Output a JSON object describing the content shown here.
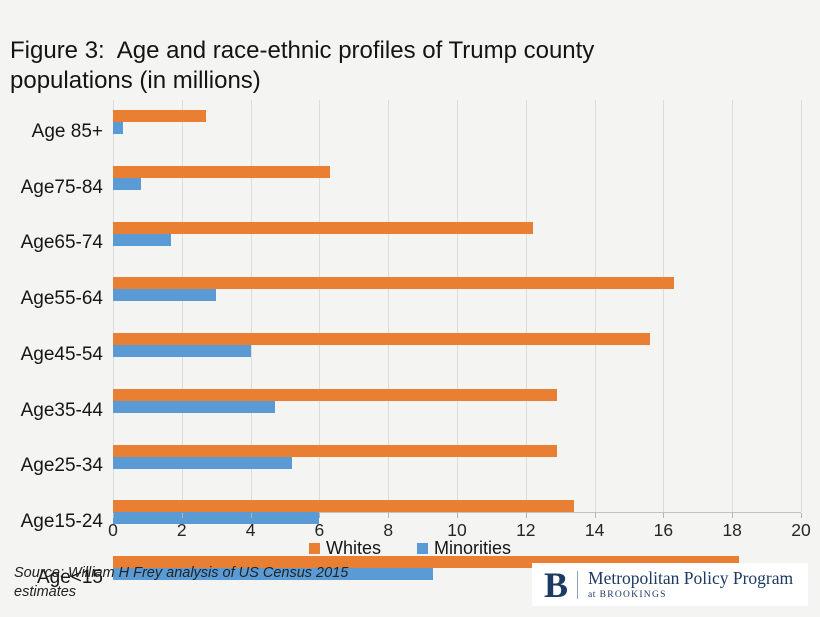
{
  "title": "Figure 3:  Age and race-ethnic profiles of Trump county populations (in millions)",
  "chart_data": {
    "type": "bar",
    "orientation": "horizontal",
    "title": "Figure 3:  Age and race-ethnic profiles of Trump county populations (in millions)",
    "categories": [
      "Age 85+",
      "Age75-84",
      "Age65-74",
      "Age55-64",
      "Age45-54",
      "Age35-44",
      "Age25-34",
      "Age15-24",
      "Age<15"
    ],
    "series": [
      {
        "name": "Whites",
        "color": "#e87f33",
        "values": [
          2.7,
          6.3,
          12.2,
          16.3,
          15.6,
          12.9,
          12.9,
          13.4,
          18.2
        ]
      },
      {
        "name": "Minorities",
        "color": "#5b9bd5",
        "values": [
          0.3,
          0.8,
          1.7,
          3.0,
          4.0,
          4.7,
          5.2,
          6.0,
          9.3
        ]
      }
    ],
    "xlabel": "",
    "ylabel": "",
    "xlim": [
      0,
      20
    ],
    "xticks": [
      0,
      2,
      4,
      6,
      8,
      10,
      12,
      14,
      16,
      18,
      20
    ],
    "grid": true,
    "legend_position": "bottom"
  },
  "footer": {
    "source": "Source: William H Frey analysis of US Census 2015 estimates",
    "logo": {
      "initial": "B",
      "program": "Metropolitan Policy Program",
      "at": "at",
      "brookings": "BROOKINGS"
    }
  },
  "colors": {
    "whites": "#e87f33",
    "minorities": "#5b9bd5",
    "brand_navy": "#1c3a63",
    "background": "#f4f4f3",
    "gridline": "#dddddc"
  }
}
